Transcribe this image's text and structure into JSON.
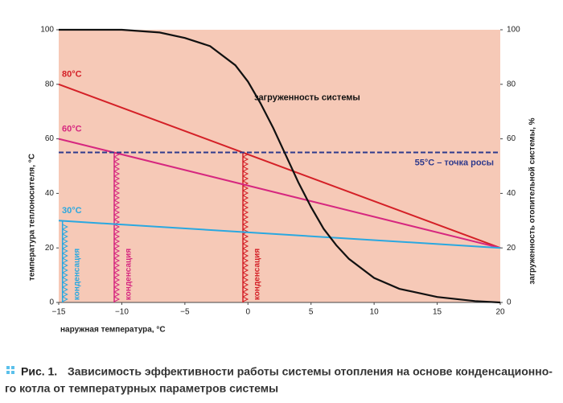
{
  "chart_data": {
    "type": "line",
    "x_label": "наружная температура, °C",
    "y_label": "температура теплоносителя, °C",
    "y2_label": "загруженность отопительной системы, %",
    "xlim": [
      -15,
      20
    ],
    "xticks": [
      {
        "value": -15,
        "label": "−15"
      },
      {
        "value": -10,
        "label": "−10"
      },
      {
        "value": -5,
        "label": "−5"
      },
      0,
      5,
      10,
      15,
      20
    ],
    "ylim": [
      0,
      100
    ],
    "yticks": [
      0,
      20,
      40,
      60,
      80,
      100
    ],
    "y2lim": [
      0,
      100
    ],
    "y2ticks": [
      0,
      20,
      40,
      60,
      80,
      100
    ],
    "background": "#f6c9b7",
    "series": [
      {
        "name": "80°C",
        "color": "#d42027",
        "x": [
          -15,
          20
        ],
        "values": [
          80,
          20
        ]
      },
      {
        "name": "60°C",
        "color": "#d6277f",
        "x": [
          -15,
          20
        ],
        "values": [
          60,
          20
        ]
      },
      {
        "name": "30°C",
        "color": "#2aa8e0",
        "x": [
          -15,
          20
        ],
        "values": [
          30,
          20
        ]
      },
      {
        "name": "55°C – точка росы",
        "color": "#2e3a8c",
        "dashed": true,
        "x": [
          -15,
          20
        ],
        "values": [
          55,
          55
        ]
      },
      {
        "name": "загруженность системы",
        "color": "#111111",
        "axis": "y2",
        "x": [
          -15,
          -10,
          -7,
          -5,
          -3,
          -1,
          0,
          1,
          2,
          3,
          4,
          5,
          6,
          7,
          8,
          10,
          12,
          15,
          18,
          20
        ],
        "values": [
          100,
          100,
          99,
          97,
          94,
          87,
          81,
          73,
          64,
          54,
          44,
          35,
          27,
          21,
          16,
          9,
          5,
          2,
          0.5,
          0
        ]
      }
    ],
    "condensation": [
      {
        "label": "конденсация",
        "color": "#2aa8e0",
        "x": -14.7,
        "top": 30
      },
      {
        "label": "конденсация",
        "color": "#d6277f",
        "x": -10.6,
        "top": 55
      },
      {
        "label": "конденсация",
        "color": "#d42027",
        "x": -0.4,
        "top": 55
      }
    ]
  },
  "caption": {
    "label": "Рис. 1.",
    "lines": [
      "Зависимость эффективности работы системы отопления на основе конденсационно-",
      "го котла от температурных параметров системы"
    ]
  }
}
